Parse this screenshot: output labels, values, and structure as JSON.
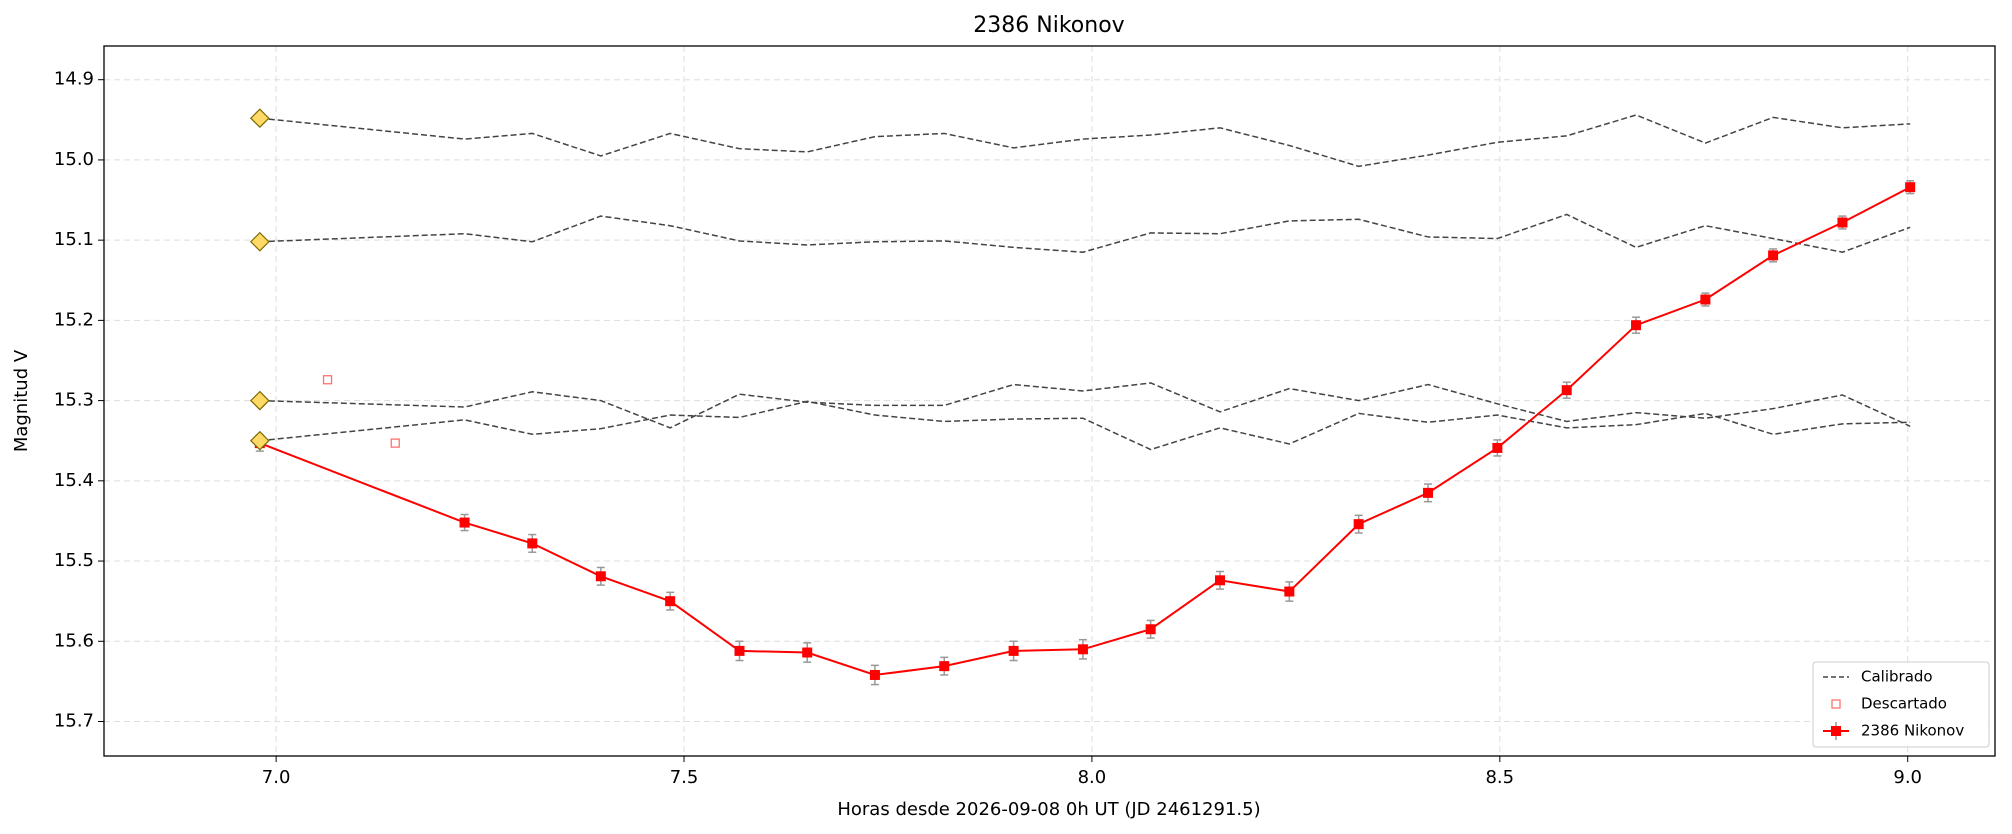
{
  "chart_data": {
    "type": "line",
    "title": "2386 Nikonov",
    "xlabel": "Horas desde 2026-09-08 0h UT (JD 2461291.5)",
    "ylabel": "Magnitud V",
    "xlim": [
      6.789,
      9.107
    ],
    "ylim": [
      15.743,
      14.858
    ],
    "xticks": [
      {
        "value": 7,
        "label": "7.0"
      },
      7.5,
      {
        "value": 8,
        "label": "8.0"
      },
      8.5,
      {
        "value": 9,
        "label": "9.0"
      }
    ],
    "yticks": [
      14.9,
      {
        "value": 15,
        "label": "15.0"
      },
      15.1,
      15.2,
      15.3,
      15.4,
      15.5,
      15.6,
      15.7
    ],
    "grid": true,
    "legend": "lower right",
    "x": [
      6.98,
      7.231,
      7.314,
      7.398,
      7.483,
      7.568,
      7.651,
      7.734,
      7.819,
      7.904,
      7.989,
      8.072,
      8.157,
      8.242,
      8.327,
      8.412,
      8.497,
      8.582,
      8.667,
      8.752,
      8.835,
      8.92,
      9.003
    ],
    "series": [
      {
        "name": "Calibrado",
        "color": "#444444",
        "lines": [
          [
            14.948,
            14.974,
            14.967,
            14.995,
            14.967,
            14.986,
            14.99,
            14.971,
            14.967,
            14.985,
            14.974,
            14.969,
            14.96,
            14.982,
            15.008,
            14.994,
            14.978,
            14.97,
            14.944,
            14.979,
            14.947,
            14.96,
            14.955
          ],
          [
            15.102,
            15.092,
            15.102,
            15.07,
            15.082,
            15.101,
            15.106,
            15.102,
            15.101,
            15.109,
            15.115,
            15.091,
            15.092,
            15.076,
            15.074,
            15.096,
            15.098,
            15.068,
            15.109,
            15.082,
            15.098,
            15.115,
            15.084
          ],
          [
            15.3,
            15.308,
            15.289,
            15.3,
            15.334,
            15.292,
            15.302,
            15.306,
            15.306,
            15.28,
            15.288,
            15.278,
            15.314,
            15.285,
            15.3,
            15.28,
            15.304,
            15.326,
            15.315,
            15.322,
            15.31,
            15.293,
            15.332
          ],
          [
            15.35,
            15.324,
            15.342,
            15.335,
            15.318,
            15.321,
            15.301,
            15.318,
            15.326,
            15.323,
            15.322,
            15.361,
            15.334,
            15.354,
            15.316,
            15.327,
            15.318,
            15.334,
            15.33,
            15.316,
            15.342,
            15.329,
            15.327
          ]
        ]
      },
      {
        "name": "Descartado",
        "color": "#ff7070",
        "x": [
          7.063,
          7.146
        ],
        "values": [
          15.274,
          15.353
        ]
      },
      {
        "name": "2386 Nikonov",
        "color": "#ff0000",
        "values": [
          15.353,
          15.452,
          15.478,
          15.519,
          15.55,
          15.612,
          15.614,
          15.642,
          15.631,
          15.612,
          15.61,
          15.585,
          15.524,
          15.538,
          15.454,
          15.415,
          15.359,
          15.287,
          15.206,
          15.174,
          15.119,
          15.078,
          15.034
        ],
        "errors": [
          0.01,
          0.01,
          0.011,
          0.011,
          0.011,
          0.012,
          0.012,
          0.012,
          0.011,
          0.012,
          0.012,
          0.011,
          0.011,
          0.012,
          0.011,
          0.011,
          0.01,
          0.01,
          0.01,
          0.008,
          0.008,
          0.008,
          0.008
        ]
      }
    ]
  }
}
